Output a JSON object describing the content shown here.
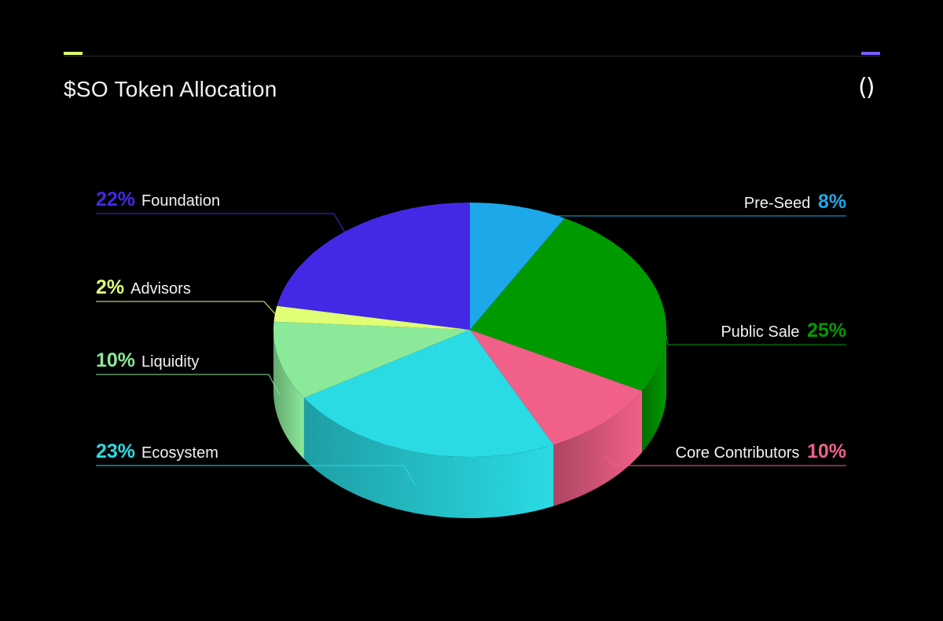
{
  "header": {
    "title": "$SO Token Allocation",
    "brand_mark": "()",
    "accent_left_color": "#d8ff6b",
    "accent_right_color": "#7b5cff"
  },
  "chart_data": {
    "type": "pie",
    "style": "3d",
    "title": "$SO Token Allocation",
    "unit": "%",
    "slices": [
      {
        "label": "Pre-Seed",
        "value": 8,
        "color": "#1da8ea",
        "side": "right"
      },
      {
        "label": "Public Sale",
        "value": 25,
        "color": "#009a00",
        "side": "right"
      },
      {
        "label": "Core Contributors",
        "value": 10,
        "color": "#f06088",
        "side": "right"
      },
      {
        "label": "Ecosystem",
        "value": 23,
        "color": "#2adbe4",
        "side": "left"
      },
      {
        "label": "Liquidity",
        "value": 10,
        "color": "#8be99a",
        "side": "left"
      },
      {
        "label": "Advisors",
        "value": 2,
        "color": "#e0ff75",
        "side": "left"
      },
      {
        "label": "Foundation",
        "value": 22,
        "color": "#4329e6",
        "side": "left"
      }
    ]
  }
}
